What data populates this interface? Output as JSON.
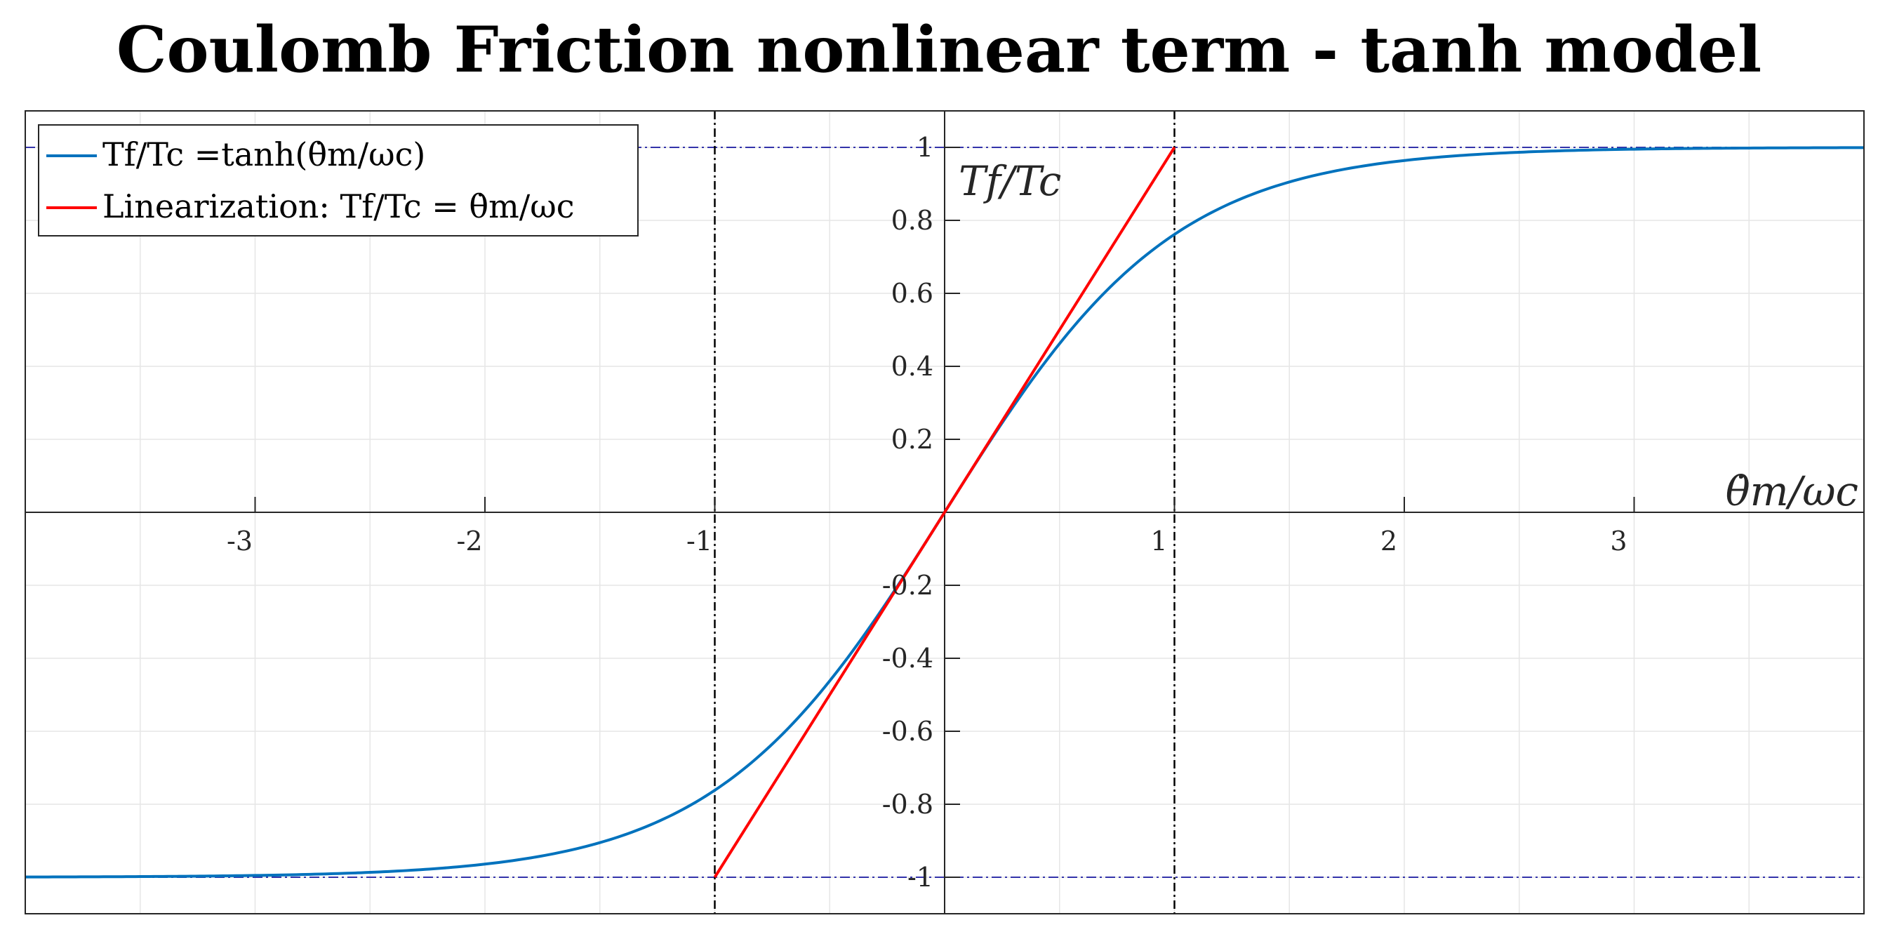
{
  "title": "Coulomb Friction nonlinear term - tanh model",
  "chart_data": {
    "type": "line",
    "xlabel": "θ̇m/ωc",
    "ylabel": "Tf/Tc",
    "xlim": [
      -4,
      4
    ],
    "ylim": [
      -1.1,
      1.1
    ],
    "grid": true,
    "legend_position": "top-left",
    "x_ticks": [
      -3,
      -2,
      -1,
      1,
      2,
      3
    ],
    "y_ticks": [
      -1,
      -0.8,
      -0.6,
      -0.4,
      -0.2,
      0.2,
      0.4,
      0.6,
      0.8,
      1
    ],
    "x_tick_labels": [
      "-3",
      "-2",
      "-1",
      "1",
      "2",
      "3"
    ],
    "y_tick_labels": [
      "-1",
      "-0.8",
      "-0.6",
      "-0.4",
      "-0.2",
      "0.2",
      "0.4",
      "0.6",
      "0.8",
      "1"
    ],
    "series": [
      {
        "name": "Tf/Tc =tanh(θ̇m/ωc)",
        "color": "#0072BD",
        "x": [
          -4,
          -3.5,
          -3,
          -2.5,
          -2,
          -1.75,
          -1.5,
          -1.25,
          -1,
          -0.75,
          -0.5,
          -0.25,
          0,
          0.25,
          0.5,
          0.75,
          1,
          1.25,
          1.5,
          1.75,
          2,
          2.5,
          3,
          3.5,
          4
        ],
        "y": [
          -0.9993,
          -0.9982,
          -0.9951,
          -0.9866,
          -0.964,
          -0.9414,
          -0.9051,
          -0.8483,
          -0.7616,
          -0.6351,
          -0.4621,
          -0.2449,
          0,
          0.2449,
          0.4621,
          0.6351,
          0.7616,
          0.8483,
          0.9051,
          0.9414,
          0.964,
          0.9866,
          0.9951,
          0.9982,
          0.9993
        ]
      },
      {
        "name": "Linearization: Tf/Tc = θ̇m/ωc",
        "color": "#FF0000",
        "x": [
          -1,
          1
        ],
        "y": [
          -1,
          1
        ]
      }
    ],
    "reference_lines": {
      "horizontal": [
        1,
        -1
      ],
      "horizontal_color": "#3333AA",
      "vertical": [
        -1,
        1
      ],
      "vertical_color": "#000000"
    }
  }
}
